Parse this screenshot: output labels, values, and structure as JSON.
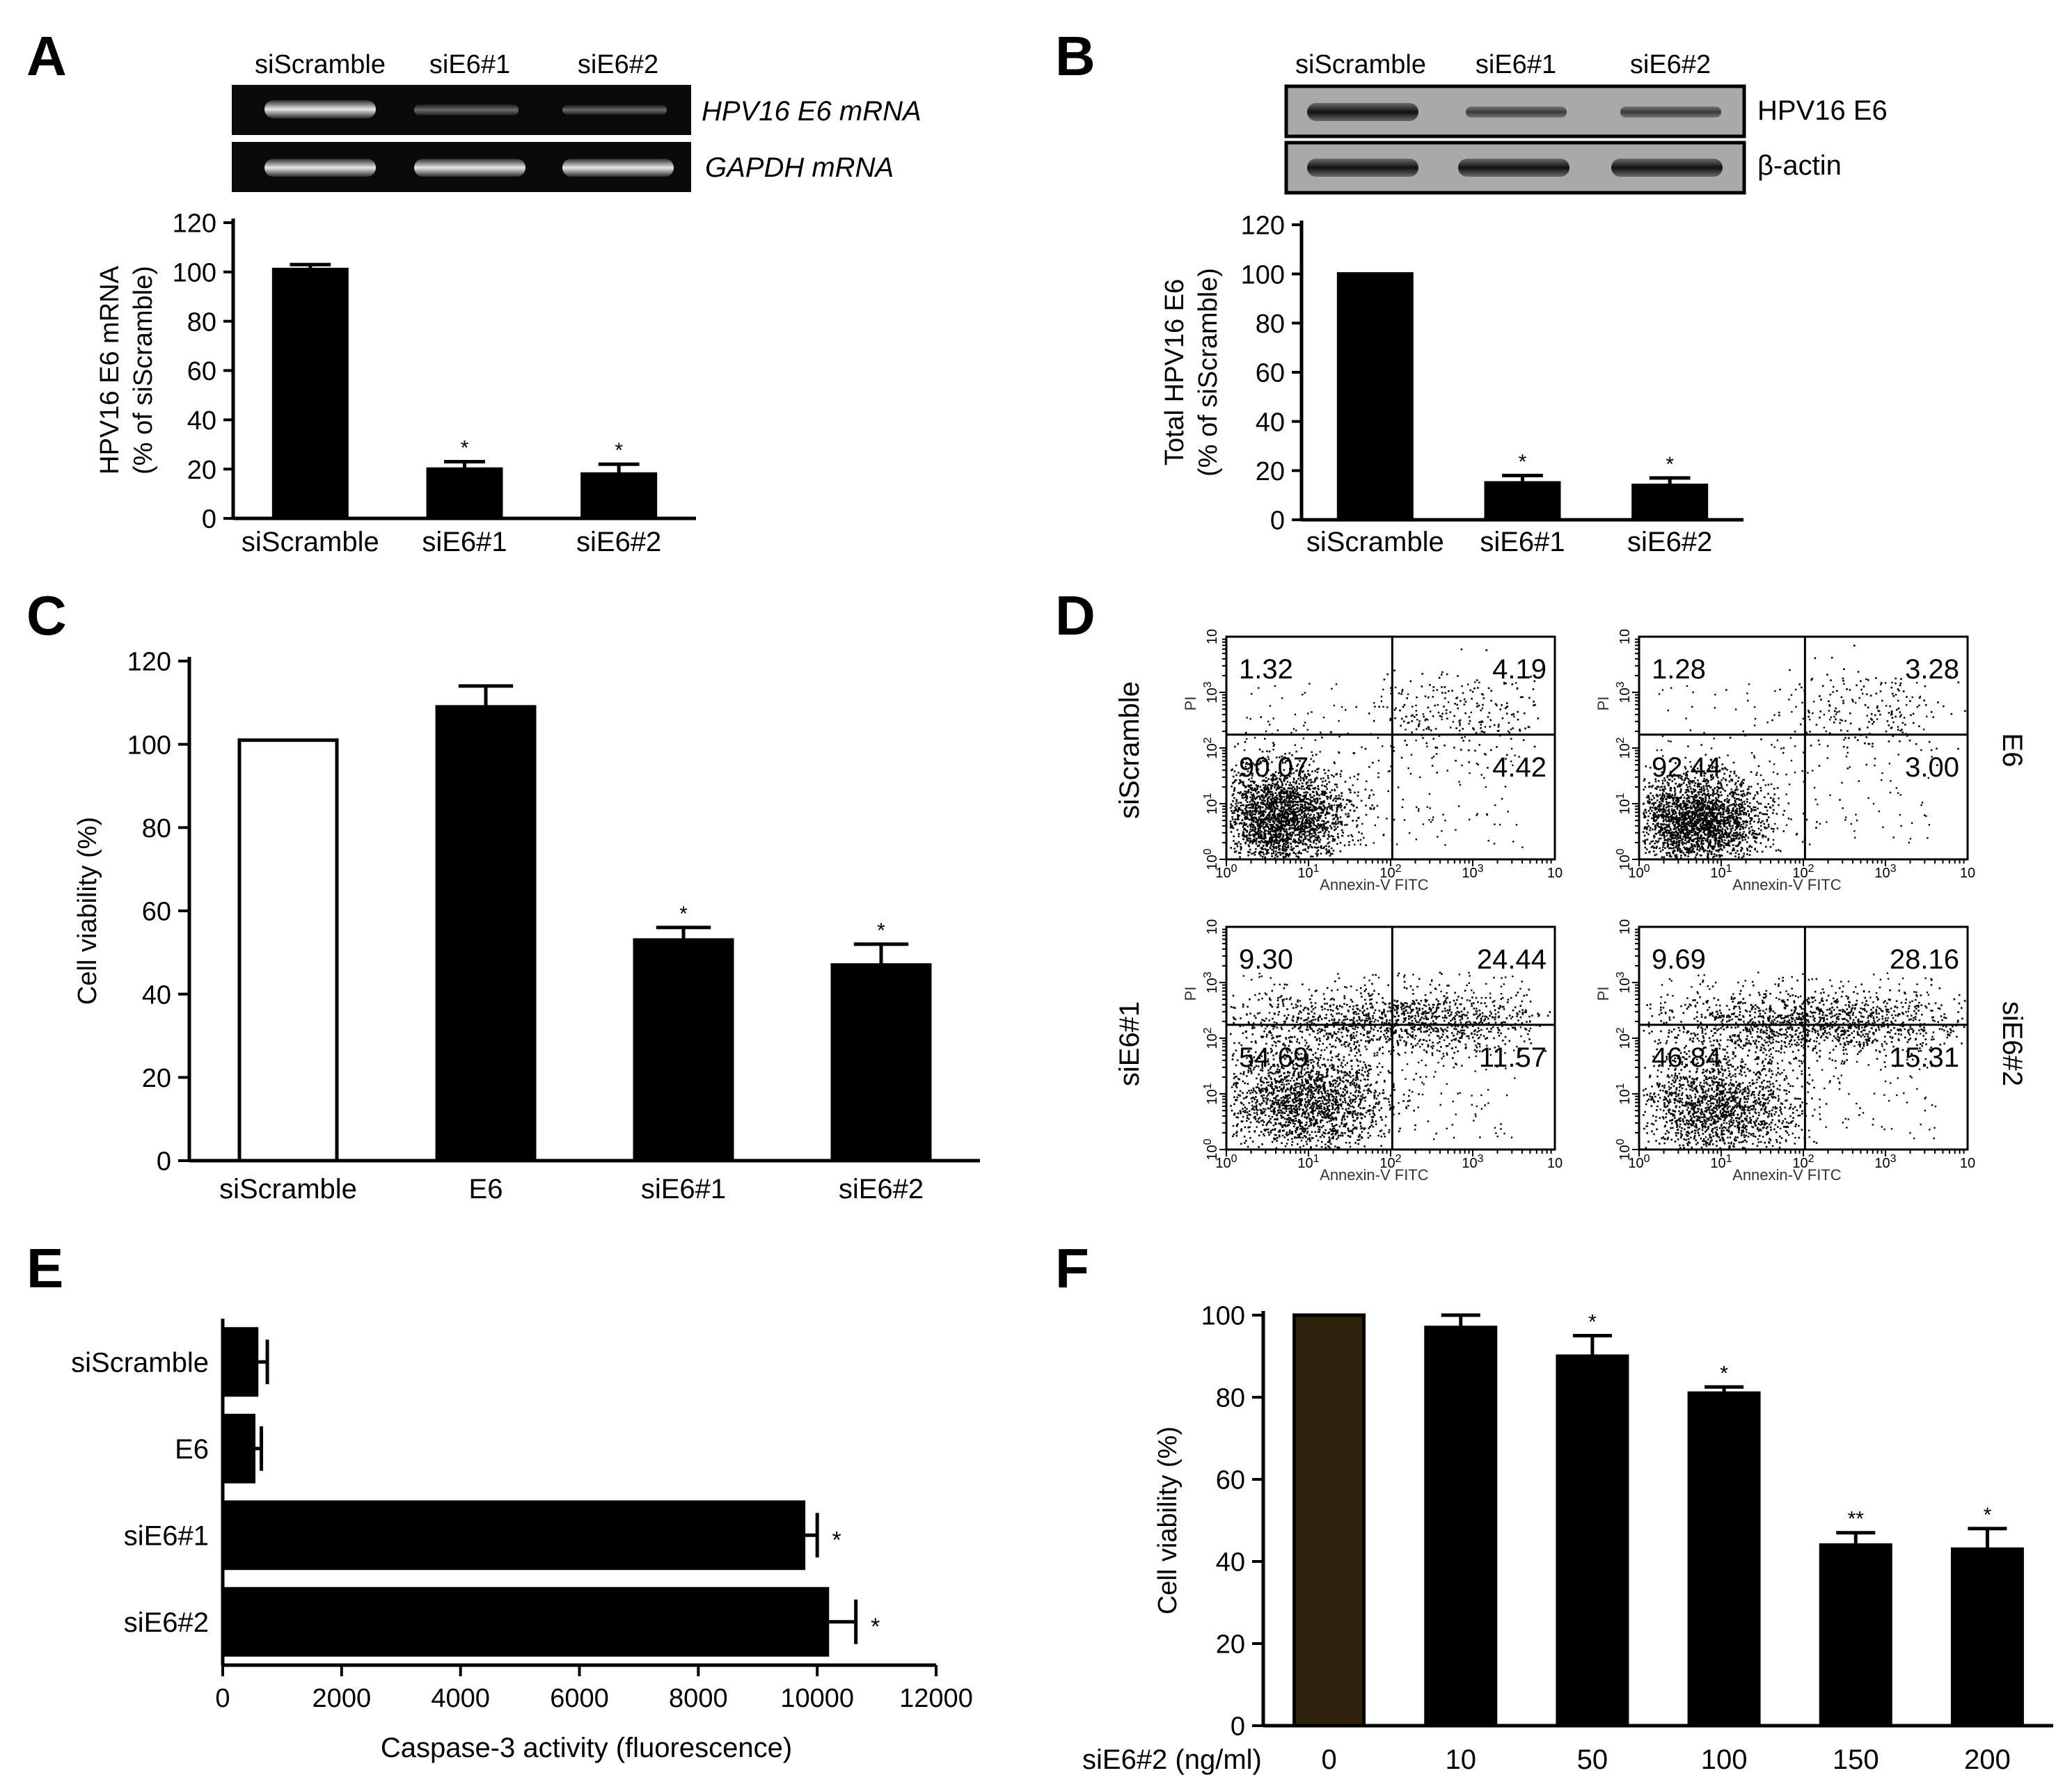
{
  "panels": {
    "A": {
      "letter": "A",
      "lanes": [
        "siScramble",
        "siE6#1",
        "siE6#2"
      ],
      "gel_labels": [
        "HPV16 E6 mRNA",
        "GAPDH mRNA"
      ]
    },
    "B": {
      "letter": "B",
      "lanes": [
        "siScramble",
        "siE6#1",
        "siE6#2"
      ],
      "blot_labels": [
        "HPV16 E6",
        "β-actin"
      ]
    },
    "C": {
      "letter": "C"
    },
    "D": {
      "letter": "D",
      "row_labels": [
        "siScramble",
        "siE6#1"
      ],
      "col_labels": [
        "E6",
        "siE6#2"
      ],
      "x_axis_label": "Annexin-V FITC",
      "y_axis_label": "PI",
      "tick_exponents": [
        "0",
        "1",
        "2",
        "3"
      ],
      "tick_base": "10",
      "tick_end": "10",
      "plots": [
        {
          "name": "siScramble",
          "quadrants": [
            "1.32",
            "4.19",
            "90.07",
            "4.42"
          ]
        },
        {
          "name": "E6",
          "quadrants": [
            "1.28",
            "3.28",
            "92.44",
            "3.00"
          ]
        },
        {
          "name": "siE6#1",
          "quadrants": [
            "9.30",
            "24.44",
            "54.69",
            "11.57"
          ]
        },
        {
          "name": "siE6#2",
          "quadrants": [
            "9.69",
            "28.16",
            "46.84",
            "15.31"
          ]
        }
      ]
    },
    "E": {
      "letter": "E"
    },
    "F": {
      "letter": "F",
      "x_prefix": "siE6#2 (ng/ml)"
    }
  },
  "chart_data": [
    {
      "id": "A",
      "type": "bar",
      "categories": [
        "siScramble",
        "siE6#1",
        "siE6#2"
      ],
      "values": [
        101,
        20,
        18
      ],
      "errors": [
        2,
        3,
        4
      ],
      "significance": [
        "",
        "*",
        "*"
      ],
      "ylabel": [
        "HPV16 E6 mRNA",
        "(% of siScramble)"
      ],
      "ylim": [
        0,
        120
      ],
      "yticks": [
        0,
        20,
        40,
        60,
        80,
        100,
        120
      ],
      "fills": [
        "#000000",
        "#000000",
        "#000000"
      ]
    },
    {
      "id": "B",
      "type": "bar",
      "categories": [
        "siScramble",
        "siE6#1",
        "siE6#2"
      ],
      "values": [
        100,
        15,
        14
      ],
      "errors": [
        0,
        3,
        3
      ],
      "significance": [
        "",
        "*",
        "*"
      ],
      "ylabel": [
        "Total HPV16 E6",
        "(% of siScramble)"
      ],
      "ylim": [
        0,
        120
      ],
      "yticks": [
        0,
        20,
        40,
        60,
        80,
        100,
        120
      ],
      "fills": [
        "#000000",
        "#000000",
        "#000000"
      ]
    },
    {
      "id": "C",
      "type": "bar",
      "categories": [
        "siScramble",
        "E6",
        "siE6#1",
        "siE6#2"
      ],
      "values": [
        101,
        109,
        53,
        47
      ],
      "errors": [
        0,
        5,
        3,
        5
      ],
      "significance": [
        "",
        "",
        "*",
        "*"
      ],
      "ylabel": [
        "Cell viability (%)"
      ],
      "ylim": [
        0,
        120
      ],
      "yticks": [
        0,
        20,
        40,
        60,
        80,
        100,
        120
      ],
      "fills": [
        "#ffffff",
        "#000000",
        "#000000",
        "#000000"
      ]
    },
    {
      "id": "E",
      "type": "bar",
      "orientation": "horizontal",
      "categories": [
        "siScramble",
        "E6",
        "siE6#1",
        "siE6#2"
      ],
      "values": [
        600,
        550,
        9800,
        10200
      ],
      "errors": [
        150,
        100,
        200,
        450
      ],
      "significance": [
        "",
        "",
        "*",
        "*"
      ],
      "xlabel": "Caspase-3 activity (fluorescence)",
      "xlim": [
        0,
        12000
      ],
      "xticks": [
        0,
        2000,
        4000,
        6000,
        8000,
        10000,
        12000
      ],
      "fills": [
        "#000000",
        "#000000",
        "#000000",
        "#000000"
      ]
    },
    {
      "id": "F",
      "type": "bar",
      "categories": [
        "0",
        "10",
        "50",
        "100",
        "150",
        "200"
      ],
      "values": [
        100,
        97,
        90,
        81,
        44,
        43
      ],
      "errors": [
        0,
        3,
        5,
        1.5,
        3,
        5
      ],
      "significance": [
        "",
        "",
        "*",
        "*",
        "**",
        "*"
      ],
      "ylabel": [
        "Cell viability (%)"
      ],
      "xlabel": "siE6#2 (ng/ml)",
      "ylim": [
        0,
        100
      ],
      "yticks": [
        0,
        20,
        40,
        60,
        80,
        100
      ],
      "fills": [
        "#2e230a",
        "#000000",
        "#000000",
        "#000000",
        "#000000",
        "#000000"
      ]
    }
  ]
}
